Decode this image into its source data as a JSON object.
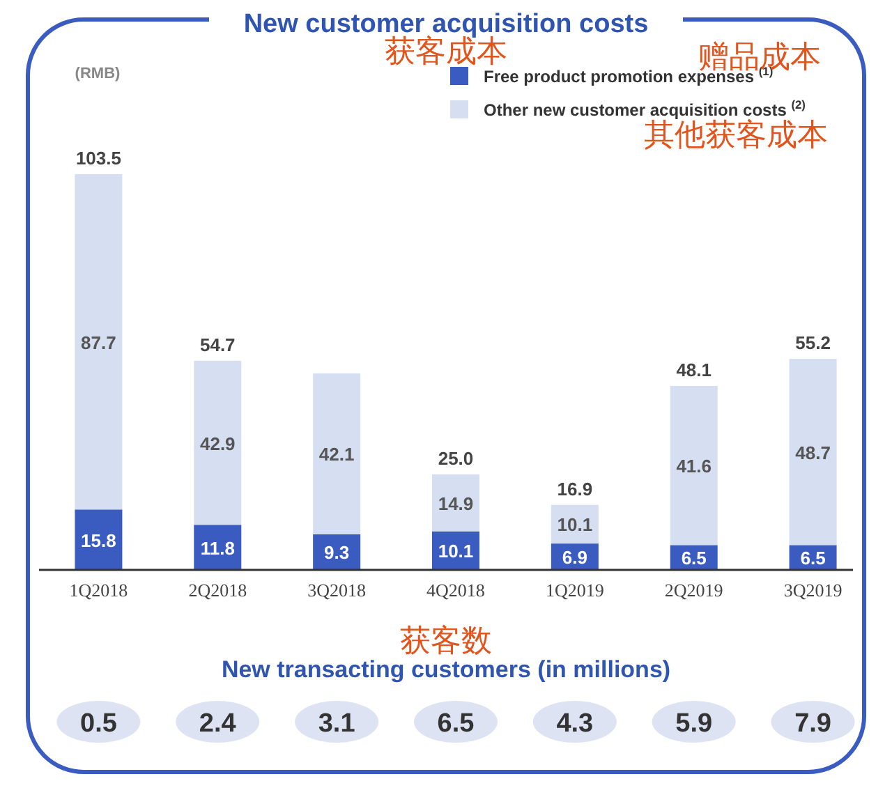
{
  "chart_data": [
    {
      "type": "bar",
      "title": "New customer acquisition costs",
      "ylabel": "(RMB)",
      "stacked": true,
      "legend": "top right",
      "categories": [
        "1Q2018",
        "2Q2018",
        "3Q2018",
        "4Q2018",
        "1Q2019",
        "2Q2019",
        "3Q2019"
      ],
      "series": [
        {
          "name": "Free product promotion expenses $^{(1)}$",
          "color": "#3a5bbf",
          "values": [
            15.8,
            11.8,
            9.3,
            10.1,
            6.9,
            6.5,
            6.5
          ],
          "value_labels": [
            "15.8",
            "11.8",
            "9.3",
            "10.1",
            "6.9",
            "6.5",
            "6.5"
          ]
        },
        {
          "name": "Other new customer acquisition costs $^{(2)}$",
          "color": "#d6def2",
          "values": [
            87.7,
            42.9,
            42.1,
            14.9,
            10.1,
            41.6,
            48.7
          ],
          "value_labels": [
            "87.7",
            "42.9",
            "42.1",
            "14.9",
            "10.1",
            "41.6",
            "48.7"
          ]
        }
      ],
      "totals": [
        "103.5",
        "54.7",
        null,
        "25.0",
        "16.9",
        "48.1",
        "55.2"
      ],
      "annotations": [
        "获客成本",
        "赠品成本",
        "其他获客成本"
      ]
    },
    {
      "type": "other",
      "title": "New transacting customers (in millions)",
      "categories": [
        null,
        null,
        null,
        null,
        null,
        null,
        null
      ],
      "values": [
        0.5,
        2.4,
        3.1,
        6.5,
        4.3,
        5.9,
        7.9
      ],
      "data_labels": true,
      "color": "#dde3f3",
      "annotations": [
        "获客数"
      ]
    }
  ]
}
